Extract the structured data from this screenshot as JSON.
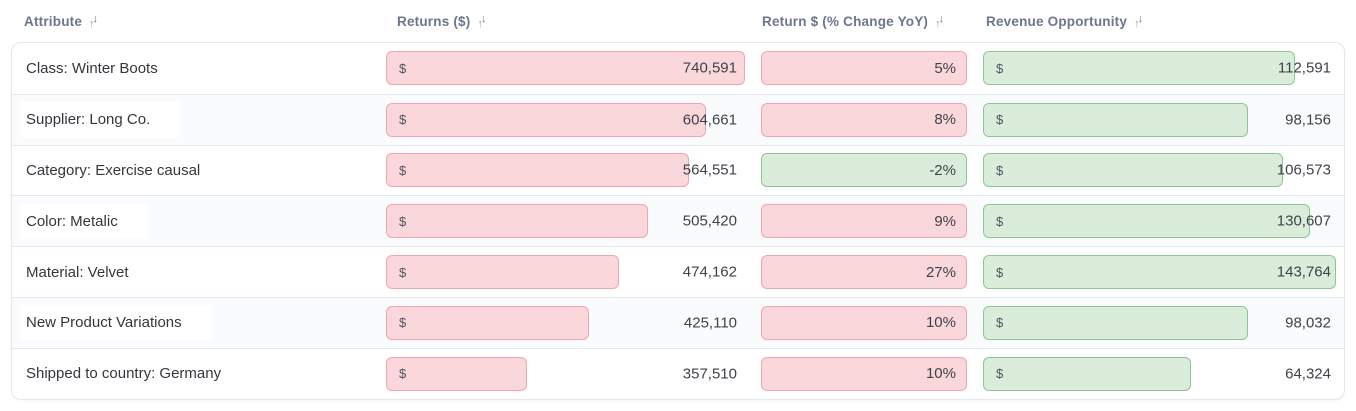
{
  "table": {
    "currency_symbol": "$",
    "columns": [
      {
        "label": "Attribute"
      },
      {
        "label": "Returns ($)"
      },
      {
        "label": "Return $ (% Change YoY)"
      },
      {
        "label": "Revenue Opportunity"
      }
    ],
    "rows": [
      {
        "attribute": "Class: Winter Boots",
        "returns": {
          "display": "740,591",
          "bar_pct": 100,
          "tone": "red"
        },
        "change": {
          "display": "5%",
          "tone": "red"
        },
        "revenue": {
          "display": "112,591",
          "bar_pct": 88.5,
          "tone": "green"
        }
      },
      {
        "attribute": "Supplier: Long Co.",
        "returns": {
          "display": "604,661",
          "bar_pct": 89,
          "tone": "red"
        },
        "change": {
          "display": "8%",
          "tone": "red"
        },
        "revenue": {
          "display": "98,156",
          "bar_pct": 75,
          "tone": "green"
        }
      },
      {
        "attribute": "Category: Exercise causal",
        "returns": {
          "display": "564,551",
          "bar_pct": 84.5,
          "tone": "red"
        },
        "change": {
          "display": "-2%",
          "tone": "green"
        },
        "revenue": {
          "display": "106,573",
          "bar_pct": 85,
          "tone": "green"
        }
      },
      {
        "attribute": "Color: Metalic",
        "returns": {
          "display": "505,420",
          "bar_pct": 73,
          "tone": "red"
        },
        "change": {
          "display": "9%",
          "tone": "red"
        },
        "revenue": {
          "display": "130,607",
          "bar_pct": 92.5,
          "tone": "green"
        }
      },
      {
        "attribute": "Material: Velvet",
        "returns": {
          "display": "474,162",
          "bar_pct": 65,
          "tone": "red"
        },
        "change": {
          "display": "27%",
          "tone": "red"
        },
        "revenue": {
          "display": "143,764",
          "bar_pct": 100,
          "tone": "green"
        }
      },
      {
        "attribute": "New Product Variations",
        "returns": {
          "display": "425,110",
          "bar_pct": 56.5,
          "tone": "red"
        },
        "change": {
          "display": "10%",
          "tone": "red"
        },
        "revenue": {
          "display": "98,032",
          "bar_pct": 75,
          "tone": "green"
        }
      },
      {
        "attribute": "Shipped to country: Germany",
        "returns": {
          "display": "357,510",
          "bar_pct": 39.4,
          "tone": "red"
        },
        "change": {
          "display": "10%",
          "tone": "red"
        },
        "revenue": {
          "display": "64,324",
          "bar_pct": 59,
          "tone": "green"
        }
      }
    ]
  },
  "chart_data": {
    "type": "table",
    "categories": [
      "Class: Winter Boots",
      "Supplier: Long Co.",
      "Category: Exercise causal",
      "Color: Metalic",
      "Material: Velvet",
      "New Product Variations",
      "Shipped to country: Germany"
    ],
    "series": [
      {
        "name": "Returns ($)",
        "values": [
          740591,
          604661,
          564551,
          505420,
          474162,
          425110,
          357510
        ]
      },
      {
        "name": "Return $ (% Change YoY)",
        "values": [
          5,
          8,
          -2,
          9,
          27,
          10,
          10
        ]
      },
      {
        "name": "Revenue Opportunity",
        "values": [
          112591,
          98156,
          106573,
          130607,
          143764,
          98032,
          64324
        ]
      }
    ],
    "colors": {
      "negative_fill": "#f9d7da",
      "negative_border": "#efa6ae",
      "positive_fill": "#d9edda",
      "positive_border": "#8bc791",
      "header_text": "#6b7590"
    }
  }
}
